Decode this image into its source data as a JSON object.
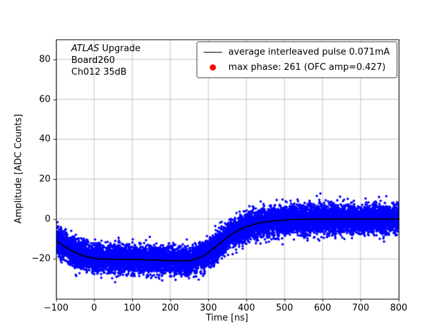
{
  "figure": {
    "background": "#ffffff",
    "annotation": {
      "line1_italic": "ATLAS",
      "line1_rest": " Upgrade",
      "line2": "Board260",
      "line3": "Ch012 35dB"
    }
  },
  "chart_data": {
    "type": "scatter",
    "title": "",
    "xlabel": "Time [ns]",
    "ylabel": "Amplitude [ADC Counts]",
    "xlim": [
      -100,
      800
    ],
    "ylim": [
      -40,
      90
    ],
    "xticks": [
      -100,
      0,
      100,
      200,
      300,
      400,
      500,
      600,
      700,
      800
    ],
    "yticks": [
      -20,
      0,
      20,
      40,
      60,
      80
    ],
    "grid": true,
    "grid_color": "#b0b0b0",
    "axis_color": "#000000",
    "legend": {
      "position": "upper right",
      "entries": [
        {
          "label": "average interleaved pulse 0.071mA",
          "handle": "line",
          "color": "#000000"
        },
        {
          "label": "max phase: 261 (OFC amp=0.427)",
          "handle": "marker",
          "color": "#ff0000"
        }
      ]
    },
    "series": [
      {
        "name": "interleaved pulse samples",
        "type": "scatter",
        "color": "#0000ff",
        "marker_radius": 1.8,
        "n_points": 14000,
        "noise_sigma": 3.3,
        "x_range": [
          -100,
          800
        ]
      },
      {
        "name": "average interleaved pulse",
        "type": "line",
        "color": "#000000",
        "line_width": 1.7,
        "points": [
          [
            -100,
            -11.0
          ],
          [
            -80,
            -13.5
          ],
          [
            -60,
            -15.8
          ],
          [
            -40,
            -17.6
          ],
          [
            -20,
            -18.9
          ],
          [
            0,
            -19.7
          ],
          [
            20,
            -20.0
          ],
          [
            40,
            -20.1
          ],
          [
            60,
            -20.2
          ],
          [
            80,
            -20.2
          ],
          [
            100,
            -20.3
          ],
          [
            120,
            -20.4
          ],
          [
            140,
            -20.5
          ],
          [
            160,
            -20.6
          ],
          [
            180,
            -20.7
          ],
          [
            200,
            -20.9
          ],
          [
            220,
            -21.0
          ],
          [
            240,
            -21.0
          ],
          [
            255,
            -20.7
          ],
          [
            270,
            -19.9
          ],
          [
            285,
            -18.6
          ],
          [
            300,
            -16.8
          ],
          [
            315,
            -14.6
          ],
          [
            330,
            -12.2
          ],
          [
            345,
            -9.9
          ],
          [
            360,
            -7.8
          ],
          [
            375,
            -6.0
          ],
          [
            390,
            -4.6
          ],
          [
            405,
            -3.5
          ],
          [
            420,
            -2.6
          ],
          [
            435,
            -2.0
          ],
          [
            450,
            -1.5
          ],
          [
            470,
            -1.0
          ],
          [
            490,
            -0.7
          ],
          [
            510,
            -0.4
          ],
          [
            540,
            -0.2
          ],
          [
            570,
            -0.1
          ],
          [
            600,
            -0.1
          ],
          [
            650,
            0.0
          ],
          [
            700,
            0.0
          ],
          [
            750,
            0.0
          ],
          [
            800,
            0.0
          ]
        ]
      }
    ]
  }
}
